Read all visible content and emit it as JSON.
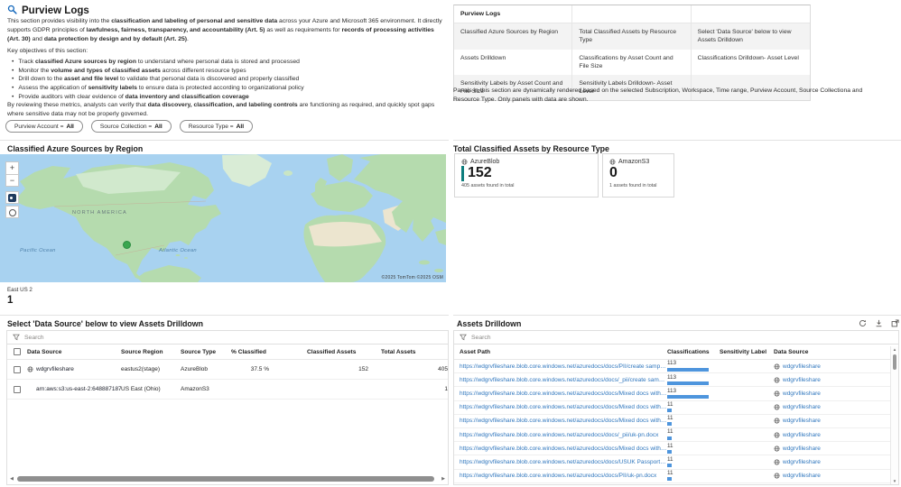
{
  "header": {
    "title": "Purview Logs"
  },
  "intro": {
    "p1": [
      {
        "t": "This section provides visibility into the "
      },
      {
        "t": "classification and labeling of personal and sensitive data",
        "b": true
      },
      {
        "t": " across your Azure and Microsoft 365 environment. It directly supports GDPR principles of "
      },
      {
        "t": "lawfulness, fairness, transparency, and accountability (Art. 5)",
        "b": true
      },
      {
        "t": " as well as requirements for "
      },
      {
        "t": "records of processing activities (Art. 30)",
        "b": true
      },
      {
        "t": " and "
      },
      {
        "t": "data protection by design and by default (Art. 25)",
        "b": true
      },
      {
        "t": "."
      }
    ],
    "objectives_label": "Key objectives of this section:",
    "bullets": [
      [
        {
          "t": "Track "
        },
        {
          "t": "classified Azure sources by region",
          "b": true
        },
        {
          "t": " to understand where personal data is stored and processed"
        }
      ],
      [
        {
          "t": "Monitor the "
        },
        {
          "t": "volume and types of classified assets",
          "b": true
        },
        {
          "t": " across different resource types"
        }
      ],
      [
        {
          "t": "Drill down to the "
        },
        {
          "t": "asset and file level",
          "b": true
        },
        {
          "t": " to validate that personal data is discovered and properly classified"
        }
      ],
      [
        {
          "t": "Assess the application of "
        },
        {
          "t": "sensitivity labels",
          "b": true
        },
        {
          "t": " to ensure data is protected according to organizational policy"
        }
      ],
      [
        {
          "t": "Provide auditors with clear evidence of "
        },
        {
          "t": "data inventory and classification coverage",
          "b": true
        }
      ]
    ],
    "closing": [
      {
        "t": "By reviewing these metrics, analysts can verify that "
      },
      {
        "t": "data discovery, classification, and labeling controls",
        "b": true
      },
      {
        "t": " are functioning as required, and quickly spot gaps where sensitive data may not be properly governed."
      }
    ]
  },
  "filters": [
    {
      "label": "Purview Account",
      "op": "=",
      "value": "All"
    },
    {
      "label": "Source Collection",
      "op": "=",
      "value": "All"
    },
    {
      "label": "Resource Type",
      "op": "=",
      "value": "All"
    }
  ],
  "overview_table": {
    "title": "Purview Logs",
    "rows": [
      [
        "Classified Azure Sources by Region",
        "Total Classified Assets by Resource Type",
        "Select 'Data Source' below to view Assets Drilldown"
      ],
      [
        "Assets Drilldown",
        "Classifications by Asset Count and File Size",
        "Classifications Drilldown- Asset Level"
      ],
      [
        "Sensitivity Labels by Asset Count and File Size",
        "Sensitivity Labels Drilldown- Asset Level",
        ""
      ]
    ]
  },
  "panels_note": "Panels in this section are dynamically rendered based on the selected Subscription, Workspace, Time range, Purview Account, Source Collectiona and Resource Type. Only panels with data are shown.",
  "map_section": {
    "title": "Classified Azure Sources by Region",
    "zoom_in": "+",
    "zoom_out": "−",
    "continent_label": "NORTH AMERICA",
    "ocean_left": "Pacific Ocean",
    "ocean_right": "Atlantic Ocean",
    "attribution": "©2025 TomTom ©2025 OSM",
    "region_label": "East US 2",
    "region_count": "1"
  },
  "tiles_section": {
    "title": "Total Classified Assets by Resource Type",
    "tiles": [
      {
        "name": "AzureBlob",
        "value": "152",
        "caption": "405 assets found in total",
        "accent": true,
        "width": 160
      },
      {
        "name": "AmazonS3",
        "value": "0",
        "caption": "1 assets found in total",
        "accent": false,
        "width": 80
      }
    ]
  },
  "datasource_table": {
    "title": "Select 'Data Source' below to view Assets Drilldown",
    "search_placeholder": "Search",
    "columns": [
      "Data Source",
      "Source Region",
      "Source Type",
      "% Classified",
      "Classified Assets",
      "Total Assets"
    ],
    "rows": [
      {
        "name": "wdgrvfileshare",
        "has_icon": true,
        "region": "eastus2(stage)",
        "type": "AzureBlob",
        "pct_classified": "37.5 %",
        "classified_assets": "152",
        "total_assets": "405"
      },
      {
        "name": "arn:aws:s3:us-east-2:6488871871...",
        "has_icon": false,
        "region": "US East (Ohio)",
        "type": "AmazonS3",
        "pct_classified": "",
        "classified_assets": "",
        "total_assets": "1"
      }
    ]
  },
  "assets_table": {
    "title": "Assets Drilldown",
    "search_placeholder": "Search",
    "columns": [
      "Asset Path",
      "Classifications",
      "Sensitivity Label",
      "Data Source"
    ],
    "max_classifications": 113,
    "rows": [
      {
        "path": "https://wdgrvfileshare.blob.core.windows.net/azuredocs/docs/PII/create samples.xlsx",
        "classifications": 113,
        "sensitivity": "",
        "source": "wdgrvfileshare"
      },
      {
        "path": "https://wdgrvfileshare.blob.core.windows.net/azuredocs/docs/_pii/create samples.xlsx",
        "classifications": 113,
        "sensitivity": "",
        "source": "wdgrvfileshare"
      },
      {
        "path": "https://wdgrvfileshare.blob.core.windows.net/azuredocs/docs/Mixed docs with PII an...",
        "classifications": 113,
        "sensitivity": "",
        "source": "wdgrvfileshare"
      },
      {
        "path": "https://wdgrvfileshare.blob.core.windows.net/azuredocs/docs/Mixed docs with PII an...",
        "classifications": 11,
        "sensitivity": "",
        "source": "wdgrvfileshare"
      },
      {
        "path": "https://wdgrvfileshare.blob.core.windows.net/azuredocs/docs/Mixed docs with PII an...",
        "classifications": 11,
        "sensitivity": "",
        "source": "wdgrvfileshare"
      },
      {
        "path": "https://wdgrvfileshare.blob.core.windows.net/azuredocs/docs/_pii/uk-pn.docx",
        "classifications": 11,
        "sensitivity": "",
        "source": "wdgrvfileshare"
      },
      {
        "path": "https://wdgrvfileshare.blob.core.windows.net/azuredocs/docs/Mixed docs with PII an...",
        "classifications": 11,
        "sensitivity": "",
        "source": "wdgrvfileshare"
      },
      {
        "path": "https://wdgrvfileshare.blob.core.windows.net/azuredocs/docs/USUK Passports/Offer L...",
        "classifications": 11,
        "sensitivity": "",
        "source": "wdgrvfileshare"
      },
      {
        "path": "https://wdgrvfileshare.blob.core.windows.net/azuredocs/docs/PII/uk-pn.docx",
        "classifications": 11,
        "sensitivity": "",
        "source": "wdgrvfileshare"
      }
    ]
  },
  "colors": {
    "accent_teal": "#0e7e7e",
    "link_blue": "#3077be",
    "bar_blue": "#4e95dd",
    "marker_green": "#3aa64f"
  }
}
